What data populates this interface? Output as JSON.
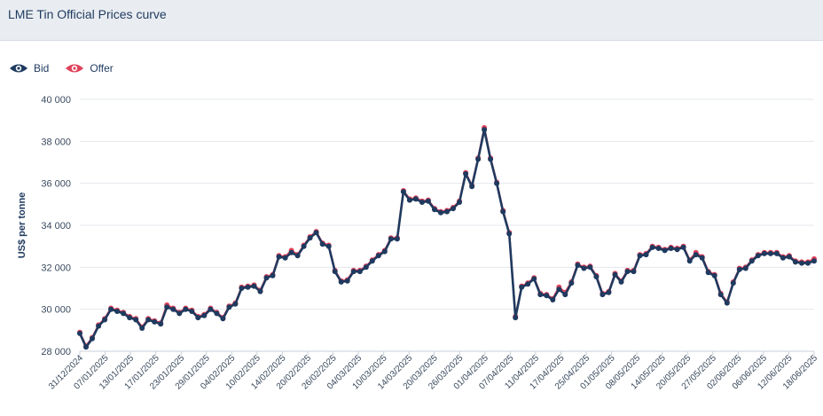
{
  "header": {
    "title": "LME Tin Official Prices curve"
  },
  "legend": [
    {
      "label": "Bid",
      "icon": "eye-icon",
      "color": "#1f3a5f"
    },
    {
      "label": "Offer",
      "icon": "eye-icon",
      "color": "#e0415a"
    }
  ],
  "chart_data": {
    "type": "line",
    "ylabel": "US$ per tonne",
    "ylim": [
      28000,
      40000
    ],
    "yticks": [
      28000,
      30000,
      32000,
      34000,
      36000,
      38000,
      40000
    ],
    "ytick_labels": [
      "28 000",
      "30 000",
      "32 000",
      "34 000",
      "36 000",
      "38 000",
      "40 000"
    ],
    "xtick_labels": [
      "31/12/2024",
      "07/01/2025",
      "13/01/2025",
      "17/01/2025",
      "23/01/2025",
      "29/01/2025",
      "04/02/2025",
      "10/02/2025",
      "14/02/2025",
      "20/02/2025",
      "26/02/2025",
      "04/03/2025",
      "10/03/2025",
      "14/03/2025",
      "20/03/2025",
      "26/03/2025",
      "01/04/2025",
      "07/04/2025",
      "11/04/2025",
      "17/04/2025",
      "25/04/2025",
      "01/05/2025",
      "08/05/2025",
      "14/05/2025",
      "20/05/2025",
      "27/05/2025",
      "02/06/2025",
      "06/06/2025",
      "12/06/2025",
      "18/06/2025"
    ],
    "grid": true,
    "colors": {
      "bid": "#1f3a5f",
      "offer": "#e0415a"
    },
    "series": [
      {
        "name": "Bid",
        "values": [
          28850,
          28200,
          28600,
          29200,
          29500,
          30000,
          29900,
          29800,
          29600,
          29500,
          29100,
          29500,
          29400,
          29300,
          30100,
          30000,
          29800,
          30000,
          29900,
          29600,
          29700,
          30000,
          29800,
          29550,
          30100,
          30250,
          31000,
          31050,
          31100,
          30850,
          31500,
          31600,
          32500,
          32450,
          32700,
          32550,
          33000,
          33400,
          33650,
          33100,
          33000,
          31800,
          31300,
          31350,
          31800,
          31800,
          32000,
          32300,
          32550,
          32750,
          33350,
          33350,
          35600,
          35200,
          35250,
          35100,
          35150,
          34750,
          34600,
          34650,
          34800,
          35100,
          36450,
          35850,
          37150,
          38550,
          37150,
          36000,
          34650,
          33600,
          29600,
          31050,
          31200,
          31450,
          30700,
          30650,
          30450,
          30950,
          30700,
          31250,
          32100,
          31950,
          32000,
          31550,
          30700,
          30800,
          31650,
          31300,
          31800,
          31800,
          32550,
          32600,
          32950,
          32900,
          32800,
          32900,
          32850,
          32950,
          32300,
          32600,
          32450,
          31750,
          31600,
          30700,
          30300,
          31250,
          31900,
          31950,
          32300,
          32550,
          32650,
          32650,
          32650,
          32450,
          32500,
          32250,
          32200,
          32200,
          32300
        ]
      },
      {
        "name": "Offer",
        "values": [
          28900,
          28250,
          28650,
          29250,
          29550,
          30050,
          29950,
          29850,
          29650,
          29550,
          29150,
          29550,
          29450,
          29350,
          30200,
          30050,
          29850,
          30050,
          29950,
          29650,
          29750,
          30050,
          29850,
          29600,
          30150,
          30300,
          31050,
          31100,
          31150,
          30900,
          31550,
          31650,
          32550,
          32500,
          32800,
          32600,
          33050,
          33450,
          33700,
          33150,
          33050,
          31850,
          31350,
          31400,
          31850,
          31850,
          32050,
          32350,
          32600,
          32800,
          33400,
          33400,
          35650,
          35250,
          35300,
          35150,
          35200,
          34800,
          34650,
          34700,
          34850,
          35150,
          36500,
          35900,
          37200,
          38650,
          37200,
          36050,
          34700,
          33650,
          29650,
          31100,
          31250,
          31500,
          30750,
          30700,
          30500,
          31050,
          30800,
          31300,
          32150,
          32000,
          32050,
          31600,
          30750,
          30850,
          31700,
          31350,
          31850,
          31850,
          32600,
          32650,
          33000,
          32950,
          32850,
          32950,
          32900,
          33000,
          32350,
          32700,
          32500,
          31800,
          31650,
          30750,
          30350,
          31300,
          31950,
          32000,
          32350,
          32600,
          32700,
          32700,
          32700,
          32500,
          32550,
          32300,
          32250,
          32250,
          32400
        ]
      }
    ]
  }
}
